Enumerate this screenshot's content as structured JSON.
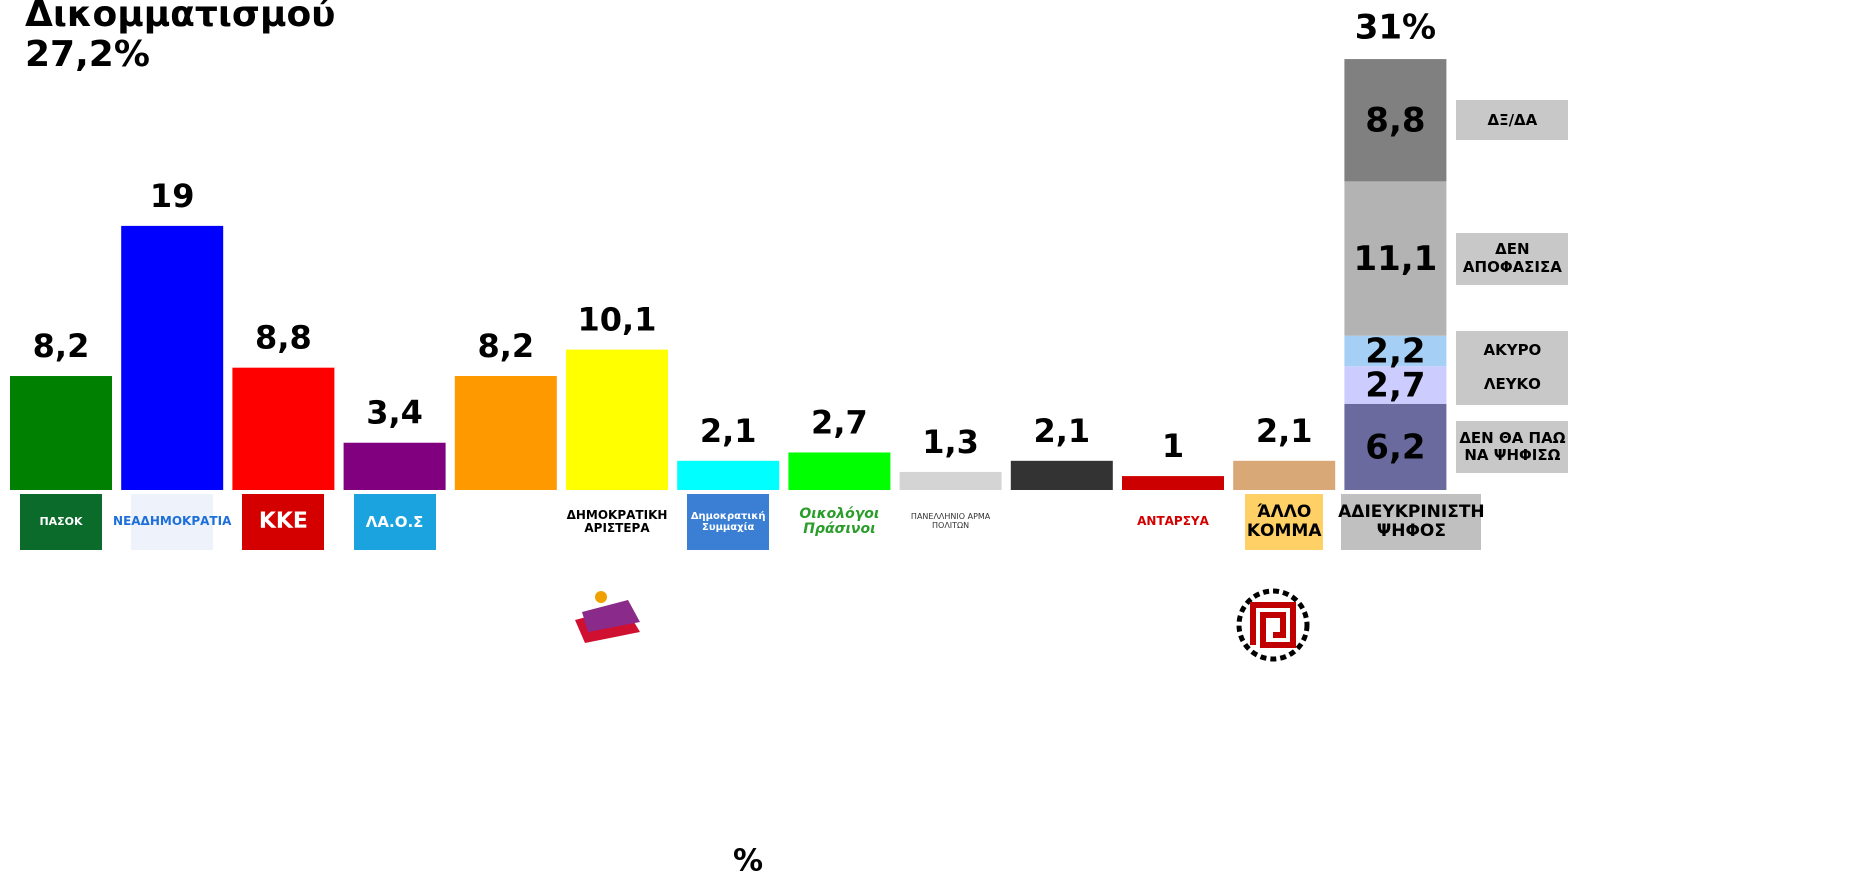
{
  "chart_data": {
    "type": "bar",
    "title": "Δικομματισμού",
    "subtitle": "27,2%",
    "xlabel": "%",
    "categories": [
      "ΠΑΣΟΚ",
      "ΝΕΑΔΗΜΟΚΡΑΤΙΑ",
      "ΚΚΕ",
      "ΛΑ.Ο.Σ",
      null,
      "ΔΗΜΟΚΡΑΤΙΚΗ ΑΡΙΣΤΕΡΑ",
      "Δημοκρατική Συμμαχία",
      "Οικολόγοι Πράσινοι",
      "ΠΑΝΕΛΛΗΝΙΟ ΑΡΜΑ ΠΟΛΙΤΩΝ",
      null,
      "ΑΝΤΑΡΣΥΑ",
      "ΆΛΛΟ ΚΟΜΜΑ",
      "ΑΔΙΕΥΚΡΙΝΙΣΤΗ ΨΗΦΟΣ"
    ],
    "values": [
      8.2,
      19,
      8.8,
      3.4,
      8.2,
      10.1,
      2.1,
      2.7,
      1.3,
      2.1,
      1,
      2.1,
      null
    ],
    "value_labels": [
      "8,2",
      "19",
      "8,8",
      "3,4",
      "8,2",
      "10,1",
      "2,1",
      "2,7",
      "1,3",
      "2,1",
      "1",
      "2,1",
      null
    ],
    "colors": [
      "#008000",
      "#0000ff",
      "#ff0000",
      "#800080",
      "#ff9900",
      "#ffff00",
      "#00ffff",
      "#00ff00",
      "#d4d4d4",
      "#333333",
      "#cc0000",
      "#d9a877",
      null
    ],
    "stack_total": 31,
    "stack_total_label": "31%",
    "stack_series": [
      {
        "name": "ΔΕΝ ΘΑ ΠΑΩ ΝΑ ΨΗΦΙΣΩ",
        "color": "#6a6a9e",
        "values": [
          6.2
        ],
        "value_labels": [
          "6,2"
        ]
      },
      {
        "name": "ΛΕΥΚΟ",
        "color": "#ccccff",
        "values": [
          2.7
        ],
        "value_labels": [
          "2,7"
        ]
      },
      {
        "name": "ΑΚΥΡΟ",
        "color": "#a6cff5",
        "values": [
          2.2
        ],
        "value_labels": [
          "2,2"
        ]
      },
      {
        "name": "ΔΕΝ ΑΠΟΦΑΣΙΣΑ",
        "color": "#b3b3b3",
        "values": [
          11.1
        ],
        "value_labels": [
          "11,1"
        ]
      },
      {
        "name": "ΔΞ/ΔΑ",
        "color": "#808080",
        "values": [
          8.8
        ],
        "value_labels": [
          "8,8"
        ]
      }
    ],
    "ylim": [
      0,
      35.25
    ]
  }
}
